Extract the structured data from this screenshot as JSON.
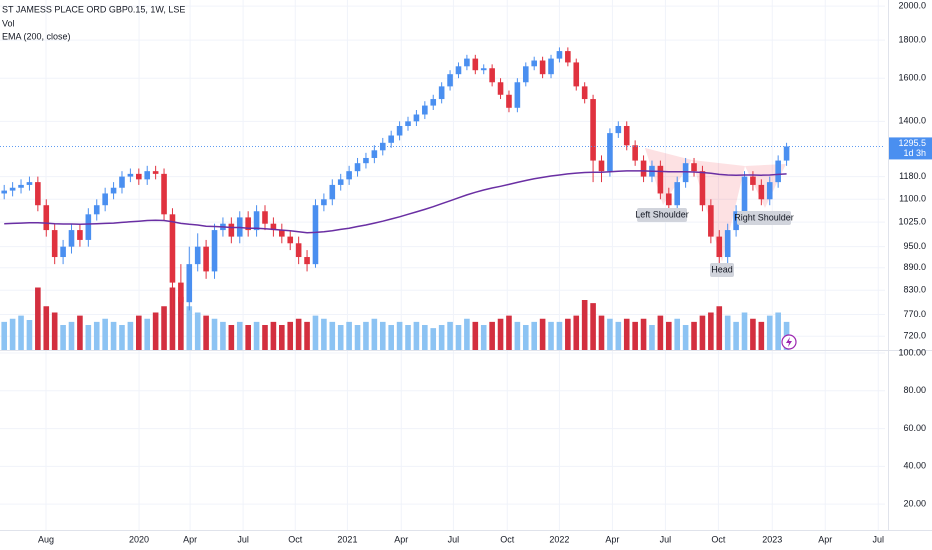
{
  "chart_data": [
    {
      "type": "candlestick",
      "title": "ST JAMESS PLACE ORD GBP0.15, 1W, LSE",
      "volume_label": "Vol",
      "ema_label": "EMA (200, close)",
      "countdown": "1d 3h",
      "log_scale": true,
      "grid": true,
      "up_color": "#4a8ff0",
      "down_color": "#e0323f",
      "volume_up_color": "#8cc3f3",
      "volume_down_color": "#d32f3f",
      "ema_color": "#6a2fa3",
      "ylim": [
        690,
        2038
      ],
      "yticks": [
        {
          "value": 2000,
          "label": "2000.0"
        },
        {
          "value": 1800,
          "label": "1800.0"
        },
        {
          "value": 1600,
          "label": "1600.0"
        },
        {
          "value": 1400,
          "label": "1400.0"
        },
        {
          "value": 1180,
          "label": "1180.0"
        },
        {
          "value": 1100,
          "label": "1100.0"
        },
        {
          "value": 1025,
          "label": "1025.0"
        },
        {
          "value": 950,
          "label": "950.0"
        },
        {
          "value": 890,
          "label": "890.0"
        },
        {
          "value": 830,
          "label": "830.0"
        },
        {
          "value": 770,
          "label": "770.0"
        },
        {
          "value": 720,
          "label": "720.0"
        }
      ],
      "xlim": [
        0,
        105.2
      ],
      "xticks": [
        {
          "value": 5.47,
          "label": "Aug"
        },
        {
          "value": 16.53,
          "label": "2020"
        },
        {
          "value": 22.6,
          "label": "Apr"
        },
        {
          "value": 28.9,
          "label": "Jul"
        },
        {
          "value": 35.1,
          "label": "Oct"
        },
        {
          "value": 41.3,
          "label": "2021"
        },
        {
          "value": 47.7,
          "label": "Apr"
        },
        {
          "value": 53.9,
          "label": "Jul"
        },
        {
          "value": 60.3,
          "label": "Oct"
        },
        {
          "value": 66.5,
          "label": "2022"
        },
        {
          "value": 72.8,
          "label": "Apr"
        },
        {
          "value": 79.1,
          "label": "Jul"
        },
        {
          "value": 85.4,
          "label": "Oct"
        },
        {
          "value": 91.8,
          "label": "2023"
        },
        {
          "value": 98.1,
          "label": "Apr"
        },
        {
          "value": 104.4,
          "label": "Jul"
        }
      ],
      "open": [
        1120,
        1130,
        1140,
        1150,
        1160,
        1080,
        1000,
        920,
        950,
        1000,
        970,
        1050,
        1080,
        1120,
        1140,
        1180,
        1190,
        1170,
        1200,
        1190,
        1050,
        850,
        800,
        900,
        950,
        880,
        1000,
        1020,
        980,
        1040,
        1000,
        1060,
        1020,
        1000,
        980,
        960,
        920,
        900,
        1080,
        1100,
        1150,
        1170,
        1200,
        1230,
        1250,
        1280,
        1310,
        1340,
        1380,
        1400,
        1430,
        1470,
        1500,
        1560,
        1620,
        1660,
        1700,
        1640,
        1650,
        1580,
        1520,
        1460,
        1580,
        1660,
        1690,
        1620,
        1700,
        1740,
        1680,
        1560,
        1500,
        1240,
        1200,
        1350,
        1380,
        1300,
        1240,
        1180,
        1220,
        1120,
        1080,
        1160,
        1230,
        1200,
        1080,
        980,
        920,
        1000,
        1060,
        1180,
        1150,
        1100,
        1160,
        1240
      ],
      "high": [
        1150,
        1160,
        1170,
        1180,
        1180,
        1100,
        1020,
        970,
        1020,
        1020,
        1070,
        1100,
        1140,
        1160,
        1200,
        1210,
        1210,
        1220,
        1220,
        1210,
        1070,
        900,
        950,
        990,
        970,
        1020,
        1040,
        1040,
        1060,
        1060,
        1080,
        1080,
        1040,
        1020,
        1000,
        980,
        940,
        1100,
        1120,
        1170,
        1190,
        1220,
        1250,
        1270,
        1300,
        1330,
        1360,
        1400,
        1420,
        1450,
        1490,
        1520,
        1580,
        1640,
        1680,
        1720,
        1720,
        1670,
        1670,
        1600,
        1540,
        1600,
        1680,
        1710,
        1710,
        1720,
        1760,
        1760,
        1700,
        1580,
        1520,
        1260,
        1370,
        1400,
        1400,
        1320,
        1260,
        1240,
        1240,
        1140,
        1180,
        1250,
        1250,
        1220,
        1100,
        1000,
        1020,
        1080,
        1200,
        1200,
        1170,
        1180,
        1260,
        1310
      ],
      "low": [
        1100,
        1110,
        1120,
        1130,
        1060,
        980,
        900,
        900,
        930,
        950,
        950,
        1030,
        1060,
        1100,
        1120,
        1160,
        1150,
        1150,
        1170,
        1030,
        780,
        760,
        780,
        880,
        860,
        860,
        980,
        960,
        960,
        980,
        980,
        1000,
        980,
        960,
        940,
        900,
        880,
        890,
        1060,
        1080,
        1130,
        1150,
        1180,
        1210,
        1230,
        1260,
        1290,
        1320,
        1360,
        1380,
        1410,
        1450,
        1480,
        1540,
        1600,
        1640,
        1620,
        1620,
        1560,
        1500,
        1440,
        1440,
        1560,
        1640,
        1600,
        1600,
        1680,
        1660,
        1540,
        1480,
        1160,
        1160,
        1180,
        1330,
        1280,
        1220,
        1160,
        1160,
        1100,
        1060,
        1060,
        1140,
        1180,
        1060,
        960,
        900,
        900,
        980,
        1040,
        1130,
        1080,
        1080,
        1140,
        1220
      ],
      "close": [
        1130,
        1140,
        1150,
        1160,
        1080,
        1000,
        920,
        950,
        1000,
        970,
        1050,
        1080,
        1120,
        1140,
        1180,
        1190,
        1170,
        1200,
        1190,
        1050,
        850,
        800,
        900,
        950,
        880,
        1000,
        1020,
        980,
        1040,
        1000,
        1060,
        1020,
        1000,
        980,
        960,
        920,
        900,
        1080,
        1100,
        1150,
        1170,
        1200,
        1230,
        1250,
        1280,
        1310,
        1340,
        1380,
        1400,
        1430,
        1470,
        1500,
        1560,
        1620,
        1660,
        1700,
        1640,
        1650,
        1580,
        1520,
        1460,
        1580,
        1660,
        1690,
        1620,
        1700,
        1740,
        1680,
        1560,
        1500,
        1240,
        1200,
        1350,
        1380,
        1300,
        1240,
        1180,
        1220,
        1120,
        1080,
        1160,
        1230,
        1200,
        1080,
        980,
        920,
        1000,
        1060,
        1180,
        1150,
        1100,
        1160,
        1240,
        1295.5
      ],
      "volume": [
        45,
        50,
        55,
        48,
        100,
        70,
        60,
        40,
        45,
        55,
        40,
        45,
        50,
        45,
        40,
        45,
        55,
        50,
        60,
        70,
        100,
        85,
        70,
        60,
        55,
        50,
        45,
        40,
        45,
        40,
        45,
        40,
        45,
        40,
        45,
        50,
        45,
        55,
        50,
        45,
        40,
        45,
        40,
        45,
        50,
        45,
        40,
        45,
        40,
        45,
        40,
        35,
        40,
        45,
        40,
        50,
        45,
        40,
        45,
        50,
        55,
        45,
        40,
        45,
        50,
        45,
        45,
        50,
        55,
        80,
        75,
        55,
        50,
        45,
        50,
        45,
        50,
        40,
        55,
        45,
        50,
        40,
        45,
        55,
        60,
        70,
        55,
        45,
        60,
        50,
        45,
        55,
        60,
        45
      ],
      "volume_lim": [
        0,
        160
      ],
      "ema": [
        1020,
        1021,
        1022,
        1023,
        1023,
        1022,
        1020,
        1019,
        1019,
        1018,
        1019,
        1020,
        1021,
        1022,
        1024,
        1026,
        1028,
        1030,
        1031,
        1030,
        1026,
        1021,
        1018,
        1016,
        1012,
        1011,
        1010,
        1008,
        1008,
        1006,
        1006,
        1004,
        1002,
        1000,
        998,
        995,
        992,
        993,
        995,
        998,
        1002,
        1006,
        1011,
        1016,
        1022,
        1028,
        1035,
        1042,
        1050,
        1058,
        1066,
        1075,
        1085,
        1095,
        1105,
        1115,
        1124,
        1132,
        1139,
        1145,
        1152,
        1159,
        1166,
        1172,
        1177,
        1182,
        1186,
        1190,
        1193,
        1195,
        1196,
        1196,
        1198,
        1200,
        1201,
        1201,
        1201,
        1200,
        1199,
        1198,
        1198,
        1198,
        1197,
        1195,
        1192,
        1188,
        1186,
        1185,
        1186,
        1186,
        1185,
        1186,
        1188,
        1190
      ],
      "annotations": [
        "Left Shoulder",
        "Head",
        "Right Shoulder"
      ]
    },
    {
      "type": "pane",
      "ylim": [
        1,
        101.6
      ],
      "yticks": [
        {
          "value": 100,
          "label": "100.00"
        },
        {
          "value": 80,
          "label": "80.00"
        },
        {
          "value": 60,
          "label": "60.00"
        },
        {
          "value": 40,
          "label": "40.00"
        },
        {
          "value": 20,
          "label": "20.00"
        }
      ]
    }
  ]
}
